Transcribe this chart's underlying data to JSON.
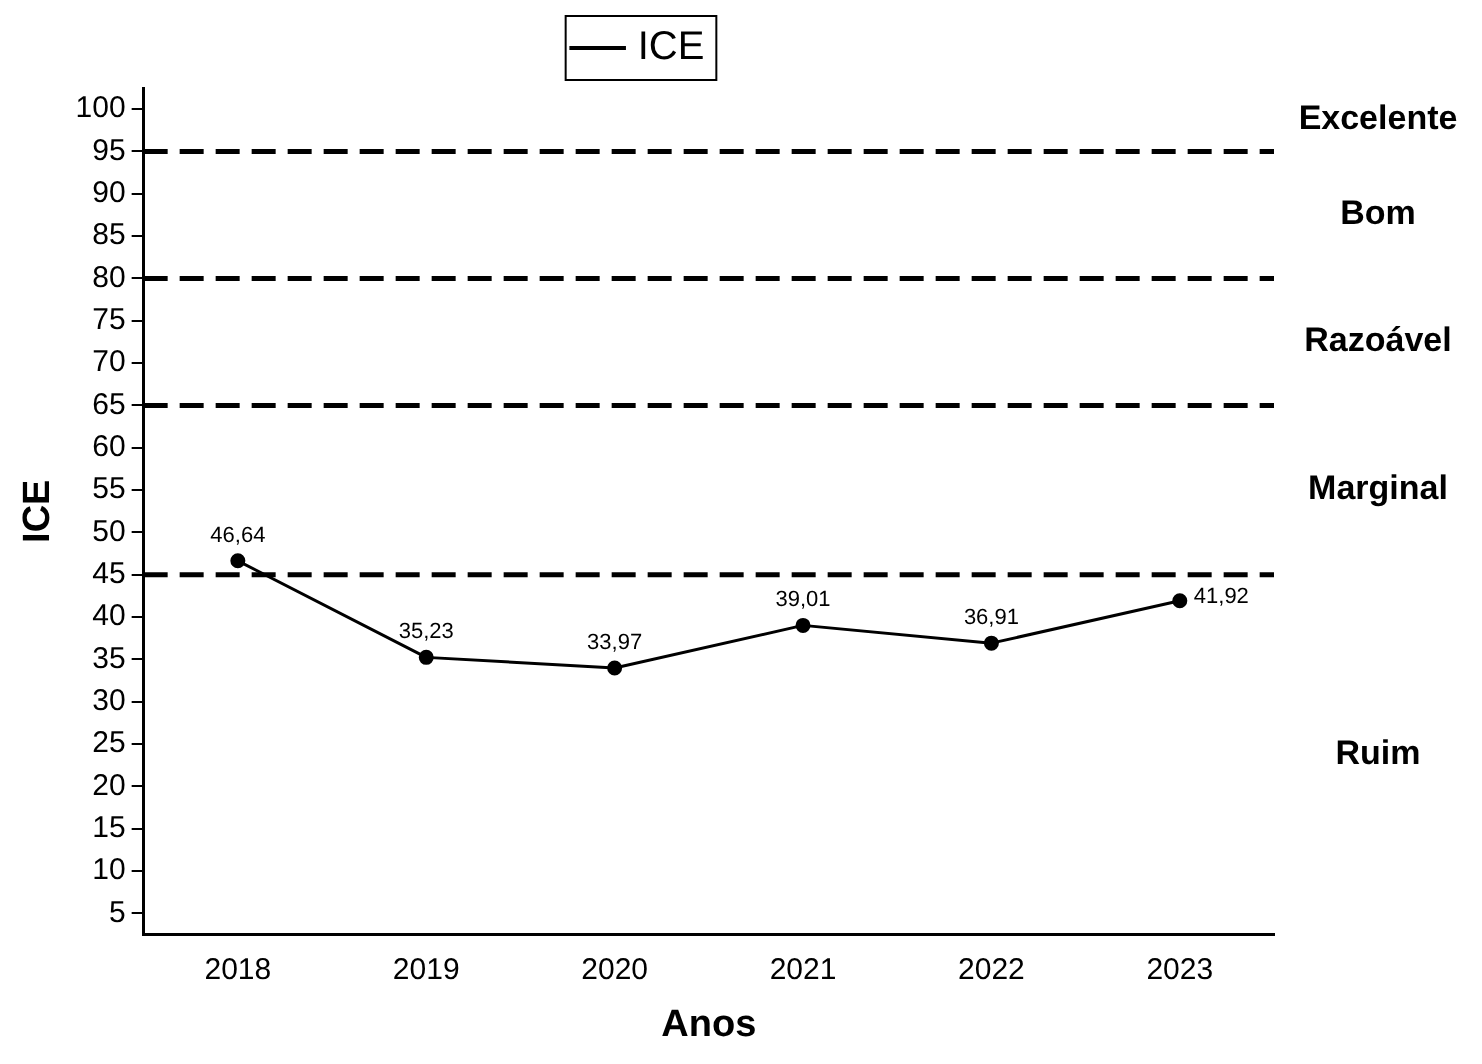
{
  "chart_data": {
    "type": "line",
    "xlabel": "Anos",
    "ylabel": "ICE",
    "categories": [
      "2018",
      "2019",
      "2020",
      "2021",
      "2022",
      "2023"
    ],
    "series": [
      {
        "name": "ICE",
        "color": "#000000",
        "values": [
          46.64,
          35.23,
          33.97,
          39.01,
          36.91,
          41.92
        ],
        "value_labels": [
          "46,64",
          "35,23",
          "33,97",
          "39,01",
          "36,91",
          "41,92"
        ]
      }
    ],
    "ylim": [
      2.5,
      102.5
    ],
    "yticks": [
      5,
      10,
      15,
      20,
      25,
      30,
      35,
      40,
      45,
      50,
      55,
      60,
      65,
      70,
      75,
      80,
      85,
      90,
      95,
      100
    ],
    "ref_lines": [
      {
        "axis": "y",
        "value": 45,
        "line_style": "dashed",
        "color": "#000000"
      },
      {
        "axis": "y",
        "value": 65,
        "line_style": "dashed",
        "color": "#000000"
      },
      {
        "axis": "y",
        "value": 80,
        "line_style": "dashed",
        "color": "#000000"
      },
      {
        "axis": "y",
        "value": 95,
        "line_style": "dashed",
        "color": "#000000"
      }
    ],
    "annotations": [
      "Excelente",
      "Bom",
      "Razoável",
      "Marginal",
      "Ruim"
    ],
    "legend": "top",
    "grid": false,
    "marker": "circle",
    "line_style": "solid"
  }
}
